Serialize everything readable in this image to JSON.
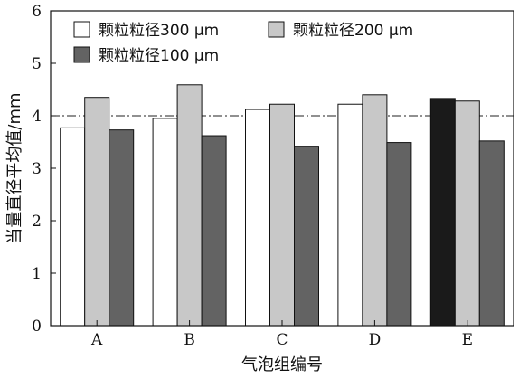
{
  "chart_data": {
    "type": "bar",
    "title": "",
    "xlabel": "气泡组编号",
    "ylabel": "当量直径平均值/mm",
    "ylim": [
      0,
      6
    ],
    "yticks": [
      0,
      1,
      2,
      3,
      4,
      5,
      6
    ],
    "categories": [
      "A",
      "B",
      "C",
      "D",
      "E"
    ],
    "reference_line": {
      "y": 4,
      "style": "dash-dot"
    },
    "legend_position": "top",
    "series": [
      {
        "name": "颗粒粒径300 μm",
        "color": "#ffffff",
        "values": [
          3.77,
          3.95,
          4.12,
          4.22,
          4.33
        ]
      },
      {
        "name": "颗粒粒径200 μm",
        "color": "#c8c8c8",
        "values": [
          4.35,
          4.59,
          4.22,
          4.4,
          4.28
        ]
      },
      {
        "name": "颗粒粒径100 μm",
        "color": "#636363",
        "values": [
          3.73,
          3.62,
          3.42,
          3.49,
          3.52
        ]
      }
    ],
    "highlight": {
      "category": "E",
      "series": 0,
      "color": "#1a1a1a"
    }
  }
}
